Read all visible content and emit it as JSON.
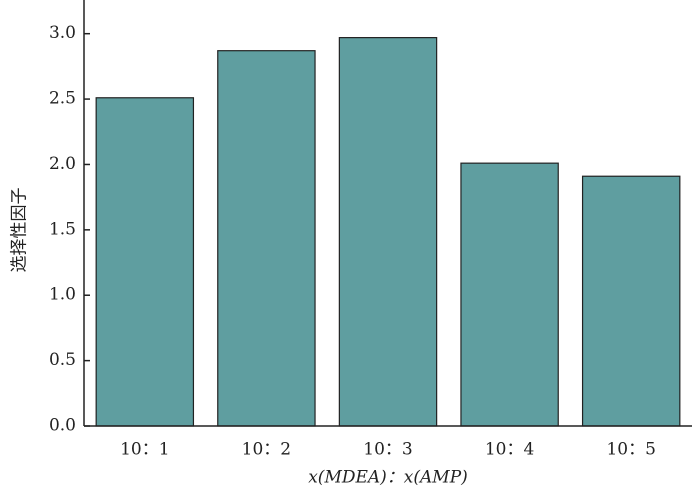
{
  "chart_data": {
    "type": "bar",
    "ylabel": "选择性因子",
    "xlabel": "x(MDEA)：x(AMP)",
    "categories": [
      "10：1",
      "10：2",
      "10：3",
      "10：4",
      "10：5"
    ],
    "values": [
      2.51,
      2.87,
      2.97,
      2.01,
      1.91
    ],
    "color": "#5f9ea0",
    "ylim": [
      0,
      3.25
    ],
    "yticks": [
      {
        "value": 0,
        "label": "0.0"
      },
      {
        "value": 0.5,
        "label": "0.5"
      },
      {
        "value": 1,
        "label": "1.0"
      },
      {
        "value": 1.5,
        "label": "1.5"
      },
      {
        "value": 2,
        "label": "2.0"
      },
      {
        "value": 2.5,
        "label": "2.5"
      },
      {
        "value": 3,
        "label": "3.0"
      }
    ],
    "grid": false
  }
}
